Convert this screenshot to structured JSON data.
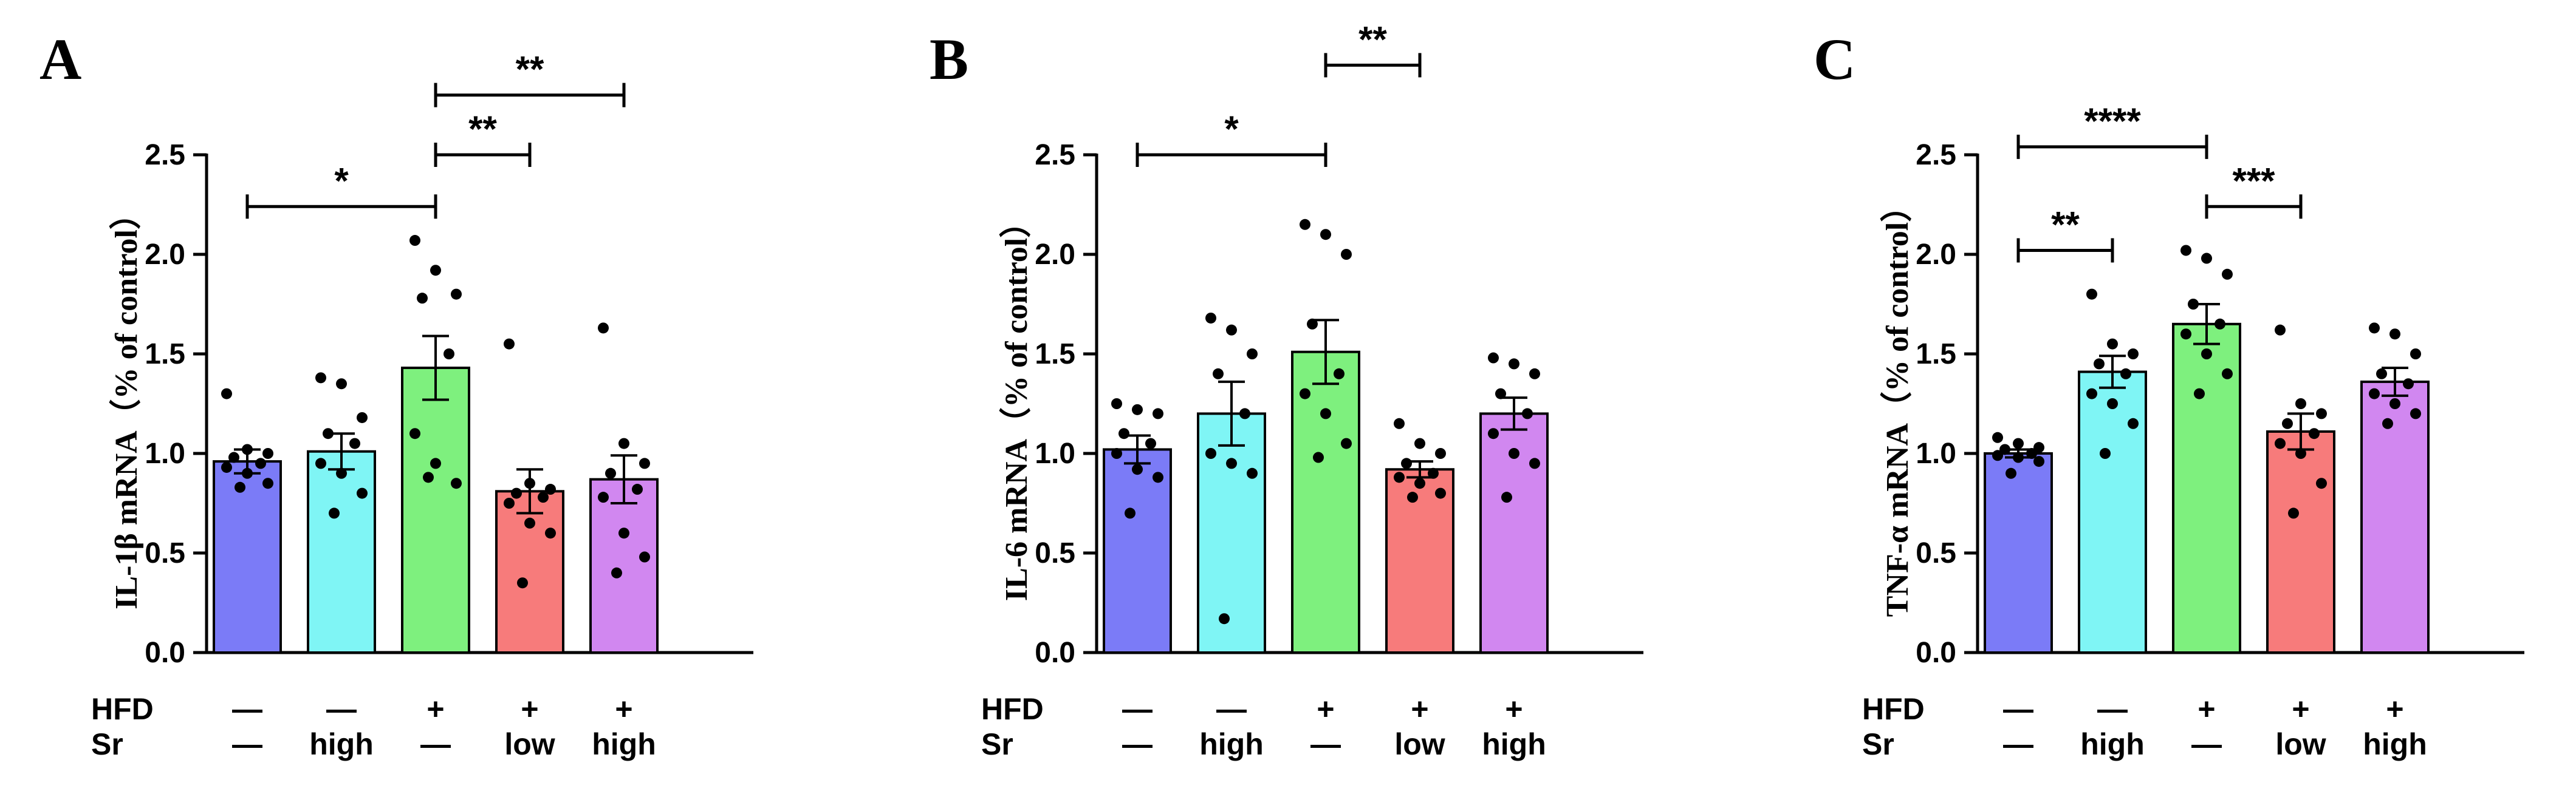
{
  "figure": {
    "groups": [
      {
        "hfd": "—",
        "sr": "—"
      },
      {
        "hfd": "—",
        "sr": "high"
      },
      {
        "hfd": "+",
        "sr": "—"
      },
      {
        "hfd": "+",
        "sr": "low"
      },
      {
        "hfd": "+",
        "sr": "high"
      }
    ],
    "row_labels": {
      "hfd": "HFD",
      "sr": "Sr"
    },
    "colors": [
      "#7b7bf7",
      "#7ff5f5",
      "#7ef07e",
      "#f77b7b",
      "#d187f0"
    ]
  },
  "chart_data": [
    {
      "type": "bar",
      "panel": "A",
      "ylabel": "IL-1β mRNA（% of control）",
      "ylim": [
        0,
        2.5
      ],
      "yticks": [
        0.0,
        0.5,
        1.0,
        1.5,
        2.0,
        2.5
      ],
      "tick_labels": [
        "0.0",
        "0.5",
        "1.0",
        "1.5",
        "2.0",
        "2.5"
      ],
      "means": [
        0.96,
        1.01,
        1.43,
        0.81,
        0.87
      ],
      "sem": [
        0.06,
        0.09,
        0.16,
        0.11,
        0.12
      ],
      "points": [
        [
          1.3,
          1.02,
          1.0,
          0.98,
          0.95,
          0.93,
          0.9,
          0.85,
          0.83
        ],
        [
          1.38,
          1.35,
          1.18,
          1.1,
          1.05,
          0.95,
          0.9,
          0.8,
          0.7
        ],
        [
          2.07,
          1.92,
          1.8,
          1.78,
          1.5,
          1.1,
          0.95,
          0.85,
          0.88
        ],
        [
          1.55,
          0.85,
          0.82,
          0.8,
          0.78,
          0.75,
          0.65,
          0.6,
          0.35
        ],
        [
          1.63,
          1.05,
          0.95,
          0.9,
          0.82,
          0.78,
          0.6,
          0.48,
          0.4
        ]
      ],
      "significance": [
        {
          "from": 0,
          "to": 2,
          "label": "*",
          "y": 2.24
        },
        {
          "from": 2,
          "to": 3,
          "label": "**",
          "y": 2.5
        },
        {
          "from": 2,
          "to": 4,
          "label": "**",
          "y": 2.8
        }
      ]
    },
    {
      "type": "bar",
      "panel": "B",
      "ylabel": "IL-6 mRNA（% of control）",
      "ylim": [
        0,
        2.5
      ],
      "yticks": [
        0.0,
        0.5,
        1.0,
        1.5,
        2.0,
        2.5
      ],
      "tick_labels": [
        "0.0",
        "0.5",
        "1.0",
        "1.5",
        "2.0",
        "2.5"
      ],
      "means": [
        1.02,
        1.2,
        1.51,
        0.92,
        1.2
      ],
      "sem": [
        0.07,
        0.16,
        0.16,
        0.04,
        0.08
      ],
      "points": [
        [
          1.25,
          1.22,
          1.2,
          1.1,
          1.05,
          1.0,
          0.92,
          0.88,
          0.7
        ],
        [
          1.68,
          1.62,
          1.5,
          1.4,
          1.2,
          1.0,
          0.95,
          0.9,
          0.17
        ],
        [
          2.15,
          2.1,
          2.0,
          1.65,
          1.4,
          1.3,
          1.2,
          1.05,
          0.98
        ],
        [
          1.15,
          1.05,
          1.0,
          0.95,
          0.9,
          0.88,
          0.85,
          0.8,
          0.78
        ],
        [
          1.48,
          1.45,
          1.4,
          1.3,
          1.2,
          1.1,
          1.0,
          0.95,
          0.78
        ]
      ],
      "significance": [
        {
          "from": 0,
          "to": 2,
          "label": "*",
          "y": 2.5
        },
        {
          "from": 2,
          "to": 3,
          "label": "**",
          "y": 2.95
        }
      ]
    },
    {
      "type": "bar",
      "panel": "C",
      "ylabel": "TNF-α mRNA（% of control）",
      "ylim": [
        0,
        2.5
      ],
      "yticks": [
        0.0,
        0.5,
        1.0,
        1.5,
        2.0,
        2.5
      ],
      "tick_labels": [
        "0.0",
        "0.5",
        "1.0",
        "1.5",
        "2.0",
        "2.5"
      ],
      "means": [
        1.0,
        1.41,
        1.65,
        1.11,
        1.36
      ],
      "sem": [
        0.02,
        0.08,
        0.1,
        0.09,
        0.07
      ],
      "points": [
        [
          1.08,
          1.05,
          1.03,
          1.02,
          1.0,
          0.99,
          0.98,
          0.96,
          0.9
        ],
        [
          1.8,
          1.55,
          1.5,
          1.45,
          1.4,
          1.3,
          1.25,
          1.15,
          1.0
        ],
        [
          2.02,
          1.98,
          1.9,
          1.75,
          1.65,
          1.6,
          1.5,
          1.4,
          1.3
        ],
        [
          1.62,
          1.25,
          1.2,
          1.15,
          1.1,
          1.05,
          1.0,
          0.85,
          0.7
        ],
        [
          1.63,
          1.6,
          1.5,
          1.4,
          1.35,
          1.3,
          1.25,
          1.2,
          1.15
        ]
      ],
      "significance": [
        {
          "from": 1,
          "to": 1,
          "label": "",
          "y": 0
        },
        {
          "from": 0,
          "to": 1,
          "label": "**",
          "y": 2.02
        },
        {
          "from": 2,
          "to": 3,
          "label": "***",
          "y": 2.24
        },
        {
          "from": 0,
          "to": 2,
          "label": "****",
          "y": 2.54
        }
      ]
    }
  ]
}
